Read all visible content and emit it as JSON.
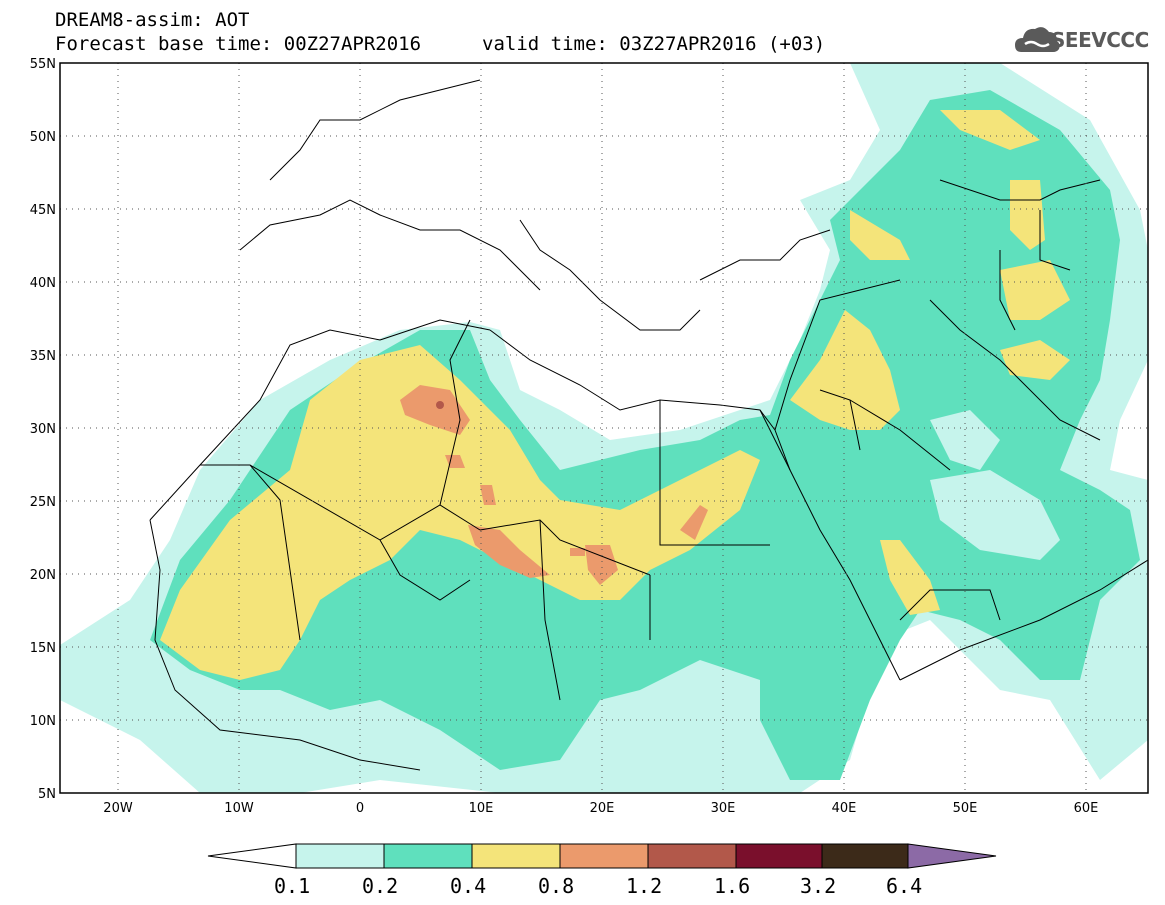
{
  "title": {
    "line1": "DREAM8-assim: AOT",
    "line2": "Forecast base time: 00Z27APR2016",
    "line3": "valid time: 03Z27APR2016 (+03)"
  },
  "logo": {
    "text": "SEEVCCC",
    "icon": "cloud-icon"
  },
  "map": {
    "lat_labels": [
      "55N",
      "50N",
      "45N",
      "40N",
      "35N",
      "30N",
      "25N",
      "20N",
      "15N",
      "10N",
      "5N"
    ],
    "lon_labels": [
      "20W",
      "10W",
      "0",
      "10E",
      "20E",
      "30E",
      "40E",
      "50E",
      "60E"
    ],
    "lat_range": [
      5,
      55
    ],
    "lon_range": [
      -25,
      65
    ],
    "grid": "dotted"
  },
  "colorbar": {
    "levels": [
      "0.1",
      "0.2",
      "0.4",
      "0.8",
      "1.2",
      "1.6",
      "3.2",
      "6.4"
    ],
    "colors": [
      "#ffffff",
      "#c6f4ec",
      "#5fe0bd",
      "#f4e47a",
      "#eb9a6c",
      "#b2584a",
      "#7a0f2c",
      "#3c2a19",
      "#8c6aa6"
    ]
  }
}
